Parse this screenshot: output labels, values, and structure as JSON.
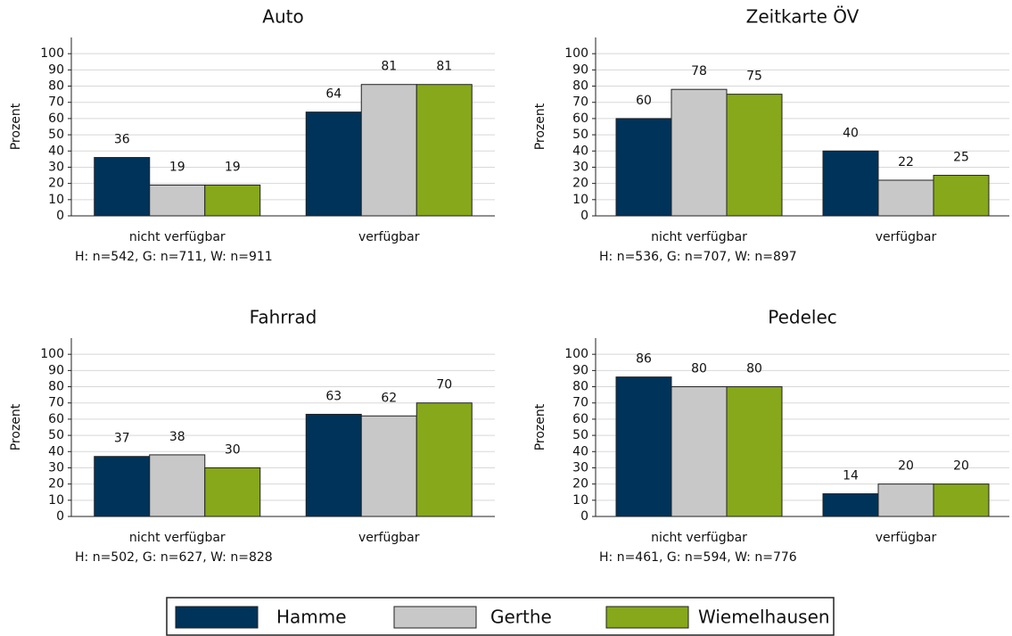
{
  "chart_data": [
    {
      "type": "bar",
      "title": "Auto",
      "ylabel": "Prozent",
      "note": "H: n=542, G: n=711, W: n=911",
      "categories": [
        "nicht verfügbar",
        "verfügbar"
      ],
      "series": [
        {
          "name": "Hamme",
          "color": "#00335a",
          "values": [
            36,
            64
          ]
        },
        {
          "name": "Gerthe",
          "color": "#c8c8c8",
          "values": [
            19,
            81
          ]
        },
        {
          "name": "Wiemelhausen",
          "color": "#86a81a",
          "values": [
            19,
            81
          ]
        }
      ],
      "ylim": [
        0,
        110
      ],
      "yticks": [
        0,
        10,
        20,
        30,
        40,
        50,
        60,
        70,
        80,
        90,
        100
      ],
      "grid": true
    },
    {
      "type": "bar",
      "title": "Zeitkarte ÖV",
      "ylabel": "Prozent",
      "note": "H: n=536, G: n=707, W: n=897",
      "categories": [
        "nicht verfügbar",
        "verfügbar"
      ],
      "series": [
        {
          "name": "Hamme",
          "color": "#00335a",
          "values": [
            60,
            40
          ]
        },
        {
          "name": "Gerthe",
          "color": "#c8c8c8",
          "values": [
            78,
            22
          ]
        },
        {
          "name": "Wiemelhausen",
          "color": "#86a81a",
          "values": [
            75,
            25
          ]
        }
      ],
      "ylim": [
        0,
        110
      ],
      "yticks": [
        0,
        10,
        20,
        30,
        40,
        50,
        60,
        70,
        80,
        90,
        100
      ],
      "grid": true
    },
    {
      "type": "bar",
      "title": "Fahrrad",
      "ylabel": "Prozent",
      "note": "H: n=502, G: n=627, W: n=828",
      "categories": [
        "nicht verfügbar",
        "verfügbar"
      ],
      "series": [
        {
          "name": "Hamme",
          "color": "#00335a",
          "values": [
            37,
            63
          ]
        },
        {
          "name": "Gerthe",
          "color": "#c8c8c8",
          "values": [
            38,
            62
          ]
        },
        {
          "name": "Wiemelhausen",
          "color": "#86a81a",
          "values": [
            30,
            70
          ]
        }
      ],
      "ylim": [
        0,
        110
      ],
      "yticks": [
        0,
        10,
        20,
        30,
        40,
        50,
        60,
        70,
        80,
        90,
        100
      ],
      "grid": true
    },
    {
      "type": "bar",
      "title": "Pedelec",
      "ylabel": "Prozent",
      "note": "H: n=461, G: n=594, W: n=776",
      "categories": [
        "nicht verfügbar",
        "verfügbar"
      ],
      "series": [
        {
          "name": "Hamme",
          "color": "#00335a",
          "values": [
            86,
            14
          ]
        },
        {
          "name": "Gerthe",
          "color": "#c8c8c8",
          "values": [
            80,
            20
          ]
        },
        {
          "name": "Wiemelhausen",
          "color": "#86a81a",
          "values": [
            80,
            20
          ]
        }
      ],
      "ylim": [
        0,
        110
      ],
      "yticks": [
        0,
        10,
        20,
        30,
        40,
        50,
        60,
        70,
        80,
        90,
        100
      ],
      "grid": true
    }
  ]
}
